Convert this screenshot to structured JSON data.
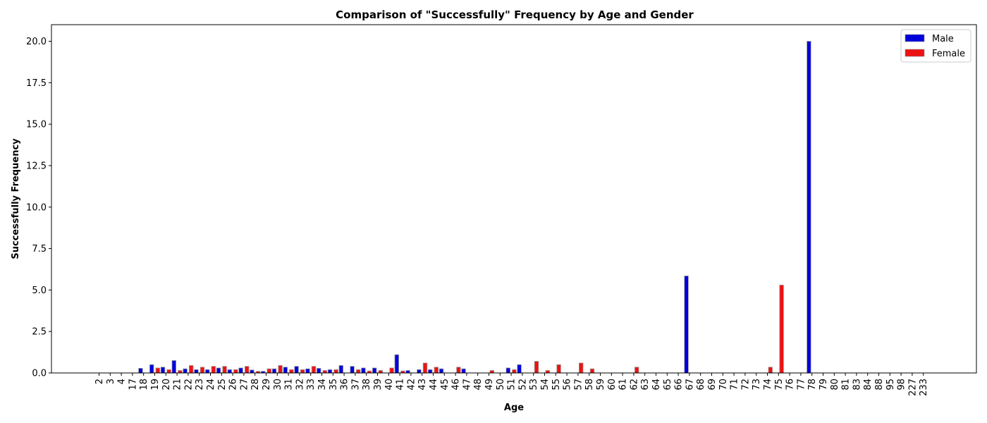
{
  "chart_data": {
    "type": "bar",
    "title": "Comparison of \"Successfully\" Frequency by Age and Gender",
    "xlabel": "Age",
    "ylabel": "Successfully Frequency",
    "ylim": [
      0,
      21
    ],
    "yticks": [
      "0.0",
      "2.5",
      "5.0",
      "7.5",
      "10.0",
      "12.5",
      "15.0",
      "17.5",
      "20.0"
    ],
    "legend_position": "top-right",
    "categories": [
      "2",
      "3",
      "4",
      "17",
      "18",
      "19",
      "20",
      "21",
      "22",
      "23",
      "24",
      "25",
      "26",
      "27",
      "28",
      "29",
      "30",
      "31",
      "32",
      "33",
      "34",
      "35",
      "36",
      "37",
      "38",
      "39",
      "40",
      "41",
      "42",
      "43",
      "44",
      "45",
      "46",
      "47",
      "48",
      "49",
      "50",
      "51",
      "52",
      "53",
      "54",
      "55",
      "56",
      "57",
      "58",
      "59",
      "60",
      "61",
      "62",
      "63",
      "64",
      "65",
      "66",
      "67",
      "68",
      "69",
      "70",
      "71",
      "72",
      "73",
      "74",
      "75",
      "76",
      "77",
      "78",
      "79",
      "80",
      "81",
      "83",
      "84",
      "88",
      "95",
      "98",
      "227",
      "233"
    ],
    "series": [
      {
        "name": "Male",
        "color": "#0000dd",
        "values": [
          0,
          0,
          0,
          0,
          0.28,
          0.5,
          0.35,
          0.75,
          0.25,
          0.2,
          0.2,
          0.3,
          0.2,
          0.3,
          0.18,
          0.1,
          0.25,
          0.35,
          0.4,
          0.25,
          0.28,
          0.2,
          0.45,
          0.4,
          0.3,
          0.3,
          0,
          1.1,
          0.15,
          0.2,
          0.2,
          0.25,
          0,
          0.25,
          0,
          0,
          0,
          0.3,
          0.5,
          0,
          0,
          0,
          0,
          0,
          0,
          0,
          0,
          0,
          0,
          0,
          0,
          0,
          0,
          5.85,
          0,
          0,
          0,
          0,
          0,
          0,
          0,
          0,
          0,
          0,
          20.0,
          0,
          0,
          0,
          0,
          0,
          0,
          0,
          0,
          0,
          0
        ]
      },
      {
        "name": "Female",
        "color": "#ee1111",
        "values": [
          0,
          0,
          0,
          0,
          0,
          0.3,
          0.2,
          0.15,
          0.45,
          0.35,
          0.4,
          0.4,
          0.2,
          0.4,
          0.1,
          0.25,
          0.45,
          0.2,
          0.2,
          0.4,
          0.15,
          0.2,
          0,
          0.2,
          0.12,
          0.15,
          0.3,
          0.12,
          0,
          0.6,
          0.35,
          0,
          0.35,
          0,
          0,
          0.15,
          0,
          0.2,
          0,
          0.7,
          0.15,
          0.5,
          0,
          0.6,
          0.25,
          0,
          0,
          0,
          0.35,
          0,
          0,
          0,
          0,
          0,
          0,
          0,
          0,
          0,
          0,
          0,
          0.35,
          5.3,
          0,
          0,
          0,
          0,
          0,
          0,
          0,
          0,
          0,
          0,
          0,
          0,
          0
        ]
      }
    ]
  }
}
